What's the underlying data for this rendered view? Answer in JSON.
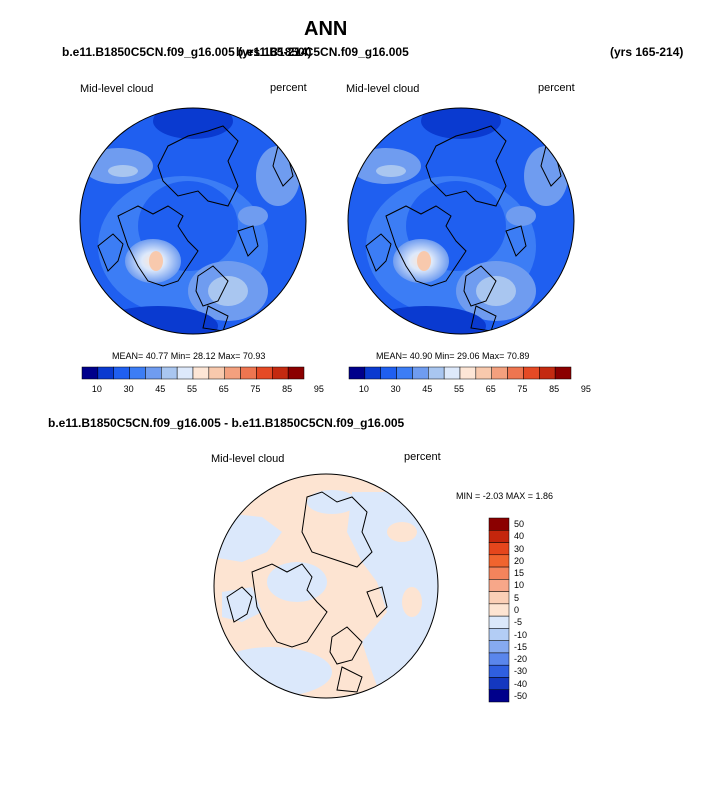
{
  "page": {
    "title": "ANN"
  },
  "top_headers": {
    "case_a": "b.e11.B1850C5CN.f09_g16.005 (yrs 165-214)",
    "case_b": "b.e11.B1850C5CN.f09_g16.005",
    "years_b": "(yrs 165-214)"
  },
  "panels": [
    {
      "field": "Mid-level cloud",
      "units": "percent",
      "stats": "MEAN=  40.77  Min=  28.12  Max=  70.93"
    },
    {
      "field": "Mid-level cloud",
      "units": "percent",
      "stats": "MEAN=  40.90  Min=  29.06  Max=  70.89"
    }
  ],
  "abs_colorbar": {
    "labels": [
      "10",
      "30",
      "45",
      "55",
      "65",
      "75",
      "85",
      "95"
    ],
    "colors": [
      "#00008b",
      "#0a3ad0",
      "#1f5ff0",
      "#3c7df5",
      "#6f9cf0",
      "#a9c6f0",
      "#dde9fb",
      "#fde6d6",
      "#f8c9ad",
      "#f3a07e",
      "#ee7550",
      "#e54a25",
      "#c42a10",
      "#8b0000"
    ]
  },
  "diff_panel": {
    "header": "b.e11.B1850C5CN.f09_g16.005 - b.e11.B1850C5CN.f09_g16.005",
    "field": "Mid-level cloud",
    "units": "percent",
    "min_max": "MIN = -2.03 MAX =   1.86",
    "colorbar": {
      "labels": [
        "50",
        "40",
        "30",
        "20",
        "15",
        "10",
        "5",
        "0",
        "-5",
        "-10",
        "-15",
        "-20",
        "-30",
        "-40",
        "-50"
      ],
      "colors": [
        "#8b0000",
        "#c4260c",
        "#e5461c",
        "#f0642e",
        "#f4845c",
        "#f7a789",
        "#fbcfb6",
        "#fde4d2",
        "#dbe8fb",
        "#b3cdf5",
        "#86aaf0",
        "#5a86ec",
        "#2f5fe0",
        "#1438c0",
        "#00008b"
      ]
    }
  }
}
